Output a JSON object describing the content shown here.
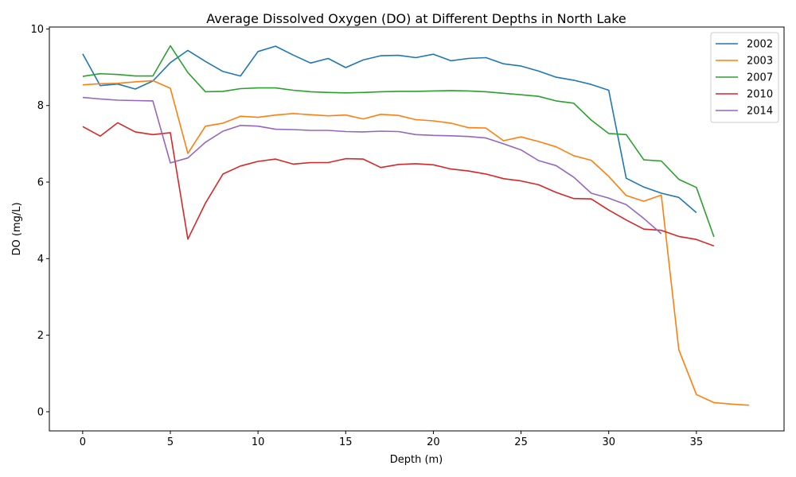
{
  "chart_data": {
    "type": "line",
    "title": "Average Dissolved Oxygen (DO) at Different Depths in North Lake",
    "xlabel": "Depth (m)",
    "ylabel": "DO (mg/L)",
    "xlim": [
      -1.9,
      40.0
    ],
    "ylim": [
      -0.5,
      10.05
    ],
    "xticks": [
      0,
      5,
      10,
      15,
      20,
      25,
      30,
      35
    ],
    "yticks": [
      0,
      2,
      4,
      6,
      8,
      10
    ],
    "grid": false,
    "legend_position": "top-right",
    "series": [
      {
        "name": "2002",
        "color": "#1f77b4",
        "x": [
          0,
          1,
          2,
          3,
          4,
          5,
          6,
          7,
          8,
          9,
          10,
          11,
          12,
          13,
          14,
          15,
          16,
          17,
          18,
          19,
          20,
          21,
          22,
          23,
          24,
          25,
          26,
          27,
          28,
          29,
          30,
          31,
          32,
          33,
          34,
          35
        ],
        "y": [
          9.35,
          8.52,
          8.56,
          8.43,
          8.64,
          9.12,
          9.44,
          9.15,
          8.89,
          8.77,
          9.41,
          9.55,
          9.32,
          9.11,
          9.23,
          8.99,
          9.19,
          9.3,
          9.31,
          9.25,
          9.34,
          9.17,
          9.23,
          9.25,
          9.09,
          9.03,
          8.9,
          8.74,
          8.66,
          8.55,
          8.4,
          6.1,
          5.87,
          5.71,
          5.6,
          5.2
        ]
      },
      {
        "name": "2003",
        "color": "#ff7f0e",
        "x": [
          0,
          1,
          2,
          3,
          4,
          5,
          6,
          7,
          8,
          9,
          10,
          11,
          12,
          13,
          14,
          15,
          16,
          17,
          18,
          19,
          20,
          21,
          22,
          23,
          24,
          25,
          26,
          27,
          28,
          29,
          30,
          31,
          32,
          33,
          34,
          35,
          36,
          37,
          38
        ],
        "y": [
          8.54,
          8.57,
          8.58,
          8.62,
          8.65,
          8.45,
          6.75,
          7.46,
          7.54,
          7.72,
          7.69,
          7.75,
          7.79,
          7.76,
          7.73,
          7.75,
          7.65,
          7.77,
          7.74,
          7.63,
          7.6,
          7.54,
          7.42,
          7.41,
          7.08,
          7.18,
          7.06,
          6.92,
          6.69,
          6.57,
          6.15,
          5.65,
          5.5,
          5.66,
          1.62,
          0.45,
          0.24,
          0.2,
          0.17
        ]
      },
      {
        "name": "2007",
        "color": "#2ca02c",
        "x": [
          0,
          1,
          2,
          3,
          4,
          5,
          6,
          7,
          8,
          9,
          10,
          11,
          12,
          13,
          14,
          15,
          16,
          17,
          18,
          19,
          20,
          21,
          22,
          23,
          24,
          25,
          26,
          27,
          28,
          29,
          30,
          31,
          32,
          33,
          34,
          35,
          36
        ],
        "y": [
          8.76,
          8.83,
          8.81,
          8.77,
          8.77,
          9.56,
          8.86,
          8.36,
          8.37,
          8.44,
          8.46,
          8.46,
          8.4,
          8.36,
          8.34,
          8.33,
          8.34,
          8.36,
          8.37,
          8.37,
          8.38,
          8.39,
          8.38,
          8.36,
          8.32,
          8.28,
          8.24,
          8.12,
          8.06,
          7.62,
          7.27,
          7.24,
          6.58,
          6.55,
          6.07,
          5.86,
          4.57
        ]
      },
      {
        "name": "2010",
        "color": "#d62728",
        "x": [
          0,
          1,
          2,
          3,
          4,
          5,
          6,
          7,
          8,
          9,
          10,
          11,
          12,
          13,
          14,
          15,
          16,
          17,
          18,
          19,
          20,
          21,
          22,
          23,
          24,
          25,
          26,
          27,
          28,
          29,
          30,
          31,
          32,
          33,
          34,
          35,
          36
        ],
        "y": [
          7.45,
          7.2,
          7.55,
          7.31,
          7.24,
          7.29,
          4.51,
          5.45,
          6.21,
          6.42,
          6.54,
          6.6,
          6.47,
          6.51,
          6.51,
          6.61,
          6.6,
          6.38,
          6.46,
          6.48,
          6.45,
          6.34,
          6.29,
          6.21,
          6.09,
          6.03,
          5.93,
          5.73,
          5.57,
          5.56,
          5.27,
          5.01,
          4.77,
          4.74,
          4.58,
          4.5,
          4.33
        ]
      },
      {
        "name": "2014",
        "color": "#9467bd",
        "x": [
          0,
          1,
          2,
          3,
          4,
          5,
          6,
          7,
          8,
          9,
          10,
          11,
          12,
          13,
          14,
          15,
          16,
          17,
          18,
          19,
          20,
          21,
          22,
          23,
          24,
          25,
          26,
          27,
          28,
          29,
          30,
          31,
          32,
          33
        ],
        "y": [
          8.21,
          8.17,
          8.14,
          8.13,
          8.12,
          6.5,
          6.63,
          7.04,
          7.33,
          7.48,
          7.46,
          7.38,
          7.37,
          7.35,
          7.35,
          7.32,
          7.31,
          7.33,
          7.32,
          7.24,
          7.22,
          7.21,
          7.19,
          7.15,
          7.0,
          6.84,
          6.56,
          6.43,
          6.13,
          5.71,
          5.58,
          5.41,
          5.05,
          4.65
        ]
      }
    ]
  }
}
